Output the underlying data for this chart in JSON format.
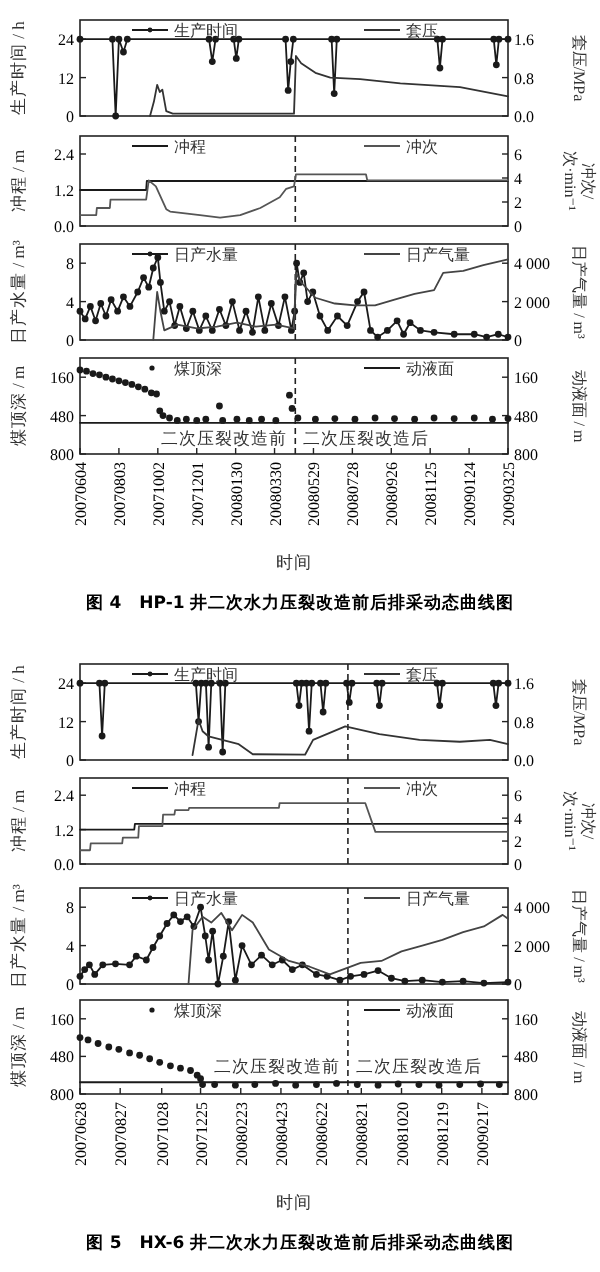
{
  "chart_data": [
    {
      "type": "line",
      "xlim": [
        "2007-06-04",
        "2009-03-25"
      ],
      "tick_labels": "y",
      "ylim": [
        0,
        30
      ],
      "yticks": [
        0,
        12,
        24
      ],
      "y2lim": [
        0,
        2
      ],
      "y2ticks": [
        {
          "value": 0,
          "label": "0.0"
        },
        0.8,
        1.6
      ],
      "ylabel": "生产时间 / h",
      "y2label": "套压/MPa",
      "legend": "top",
      "series": [
        {
          "name": "生产时间",
          "color": "#1a1a1a",
          "marker": "circle",
          "axis": "y",
          "x": [
            "2007-06-04",
            "2007-07-24",
            "2007-07-29",
            "2007-08-03",
            "2007-08-10",
            "2007-08-16",
            "2007-12-20",
            "2007-12-25",
            "2007-12-30",
            "2008-01-27",
            "2008-01-31",
            "2008-02-04",
            "2008-04-16",
            "2008-04-20",
            "2008-04-24",
            "2008-04-28",
            "2008-06-26",
            "2008-06-30",
            "2008-07-04",
            "2008-12-06",
            "2008-12-10",
            "2008-12-14",
            "2009-03-03",
            "2009-03-07",
            "2009-03-11",
            "2009-03-25"
          ],
          "values": [
            24,
            24,
            0,
            24,
            20,
            24,
            24,
            17,
            24,
            24,
            18,
            24,
            24,
            8,
            17,
            24,
            24,
            7,
            24,
            24,
            15,
            24,
            24,
            16,
            24,
            24
          ]
        },
        {
          "name": "套压",
          "color": "#333333",
          "marker": "none",
          "axis": "y2",
          "x": [
            "2007-09-20",
            "2007-09-26",
            "2007-10-01",
            "2007-10-05",
            "2007-10-09",
            "2007-10-15",
            "2007-10-25",
            "2008-04-29",
            "2008-05-02",
            "2008-05-10",
            "2008-06-01",
            "2008-06-24",
            "2008-08-09",
            "2008-10-10",
            "2009-01-10",
            "2009-03-25"
          ],
          "values": [
            0,
            0.3,
            0.65,
            0.5,
            0.55,
            0.1,
            0.05,
            0.05,
            1.25,
            1.1,
            0.9,
            0.8,
            0.77,
            0.68,
            0.6,
            0.41
          ]
        }
      ]
    },
    {
      "type": "line",
      "xlim": [
        "2007-06-04",
        "2009-03-25"
      ],
      "tick_labels": "y",
      "ylim": [
        0,
        3
      ],
      "yticks": [
        {
          "value": 0,
          "label": "0.0"
        },
        1.2,
        2.4
      ],
      "y2lim": [
        0,
        7.5
      ],
      "y2ticks": [
        0,
        2,
        4,
        6
      ],
      "ylabel": "冲程 / m",
      "y2label": "冲次/\n次·min⁻¹",
      "legend": "top",
      "ref_lines": [
        {
          "axis": "x",
          "value": "2008-05-01",
          "line_style": "dashed"
        }
      ],
      "series": [
        {
          "name": "冲程",
          "color": "#1a1a1a",
          "marker": "none",
          "axis": "y",
          "x": [
            "2007-06-04",
            "2007-09-14",
            "2007-09-15",
            "2009-03-25"
          ],
          "values": [
            1.2,
            1.2,
            1.5,
            1.5
          ]
        },
        {
          "name": "冲次",
          "color": "#555555",
          "marker": "none",
          "axis": "y2",
          "x": [
            "2007-06-04",
            "2007-06-29",
            "2007-06-30",
            "2007-07-20",
            "2007-07-21",
            "2007-09-14",
            "2007-09-18",
            "2007-09-29",
            "2007-10-15",
            "2007-10-21",
            "2007-12-06",
            "2008-01-06",
            "2008-02-06",
            "2008-03-08",
            "2008-04-07",
            "2008-04-17",
            "2008-04-29",
            "2008-05-02",
            "2008-08-18",
            "2008-08-20",
            "2009-03-25"
          ],
          "values": [
            0.9,
            0.9,
            1.5,
            1.5,
            2.2,
            2.2,
            3.8,
            3.3,
            1.4,
            1.2,
            0.9,
            0.7,
            0.9,
            1.5,
            2.4,
            3.1,
            3.3,
            4.3,
            4.3,
            3.8,
            3.8
          ]
        }
      ]
    },
    {
      "type": "line",
      "xlim": [
        "2007-06-04",
        "2009-03-25"
      ],
      "tick_labels": "y",
      "ylim": [
        0,
        10
      ],
      "yticks": [
        0,
        4,
        8
      ],
      "y2lim": [
        0,
        5000
      ],
      "y2ticks": [
        0,
        {
          "value": 2000,
          "label": "2 000"
        },
        {
          "value": 4000,
          "label": "4 000"
        }
      ],
      "ylabel": "日产水量 / m³",
      "y2label": "日产气量 / m³",
      "legend": "top",
      "ref_lines": [
        {
          "axis": "x",
          "value": "2008-05-01",
          "line_style": "dashed"
        }
      ],
      "series": [
        {
          "name": "日产水量",
          "color": "#1a1a1a",
          "marker": "circle",
          "axis": "y",
          "x": [
            "2007-06-04",
            "2007-06-12",
            "2007-06-20",
            "2007-06-28",
            "2007-07-06",
            "2007-07-14",
            "2007-07-22",
            "2007-08-01",
            "2007-08-10",
            "2007-08-20",
            "2007-09-01",
            "2007-09-10",
            "2007-09-18",
            "2007-09-25",
            "2007-10-02",
            "2007-10-06",
            "2007-10-12",
            "2007-10-20",
            "2007-10-28",
            "2007-11-05",
            "2007-11-15",
            "2007-11-25",
            "2007-12-05",
            "2007-12-15",
            "2007-12-25",
            "2008-01-05",
            "2008-01-15",
            "2008-01-25",
            "2008-02-05",
            "2008-02-15",
            "2008-02-25",
            "2008-03-05",
            "2008-03-15",
            "2008-03-25",
            "2008-04-05",
            "2008-04-15",
            "2008-04-25",
            "2008-04-30",
            "2008-05-03",
            "2008-05-08",
            "2008-05-14",
            "2008-05-20",
            "2008-05-28",
            "2008-06-08",
            "2008-06-20",
            "2008-07-05",
            "2008-07-20",
            "2008-08-05",
            "2008-08-15",
            "2008-08-25",
            "2008-09-05",
            "2008-09-20",
            "2008-10-05",
            "2008-10-15",
            "2008-10-25",
            "2008-11-10",
            "2008-12-01",
            "2009-01-01",
            "2009-02-01",
            "2009-02-20",
            "2009-03-10",
            "2009-03-25"
          ],
          "values": [
            3.0,
            2.2,
            3.5,
            2.0,
            3.8,
            2.5,
            4.2,
            3.0,
            4.5,
            3.5,
            5.0,
            6.5,
            5.5,
            7.5,
            8.6,
            6.0,
            3.0,
            4.0,
            1.5,
            3.5,
            1.2,
            3.0,
            1.0,
            2.5,
            1.0,
            3.2,
            1.5,
            4.0,
            1.0,
            3.0,
            0.8,
            4.5,
            1.0,
            3.8,
            1.5,
            4.5,
            1.0,
            3.0,
            8.0,
            6.0,
            7.0,
            4.0,
            5.0,
            2.5,
            1.0,
            2.5,
            1.5,
            4.0,
            5.0,
            1.0,
            0.3,
            1.0,
            2.0,
            0.6,
            1.8,
            1.0,
            0.8,
            0.6,
            0.6,
            0.3,
            0.6,
            0.3
          ]
        },
        {
          "name": "日产气量",
          "color": "#444444",
          "marker": "none",
          "axis": "y2",
          "x": [
            "2007-09-25",
            "2007-10-01",
            "2007-10-06",
            "2007-10-12",
            "2007-11-01",
            "2007-12-01",
            "2008-01-01",
            "2008-02-01",
            "2008-03-01",
            "2008-04-01",
            "2008-04-29",
            "2008-05-02",
            "2008-05-10",
            "2008-06-01",
            "2008-07-01",
            "2008-08-01",
            "2008-09-01",
            "2008-10-01",
            "2008-11-01",
            "2008-12-01",
            "2008-12-15",
            "2009-01-15",
            "2009-02-15",
            "2009-03-25"
          ],
          "values": [
            0,
            2500,
            1500,
            500,
            800,
            600,
            700,
            900,
            700,
            800,
            600,
            3500,
            3000,
            2200,
            1900,
            1800,
            1800,
            2100,
            2400,
            2600,
            3500,
            3600,
            3900,
            4200
          ]
        }
      ]
    },
    {
      "type": "line",
      "xlim": [
        "2007-06-04",
        "2009-03-25"
      ],
      "xticks": [
        {
          "value": "2007-06-04",
          "label": "20070604"
        },
        {
          "value": "2007-08-03",
          "label": "20070803"
        },
        {
          "value": "2007-10-02",
          "label": "20071002"
        },
        {
          "value": "2007-12-01",
          "label": "20071201"
        },
        {
          "value": "2008-01-30",
          "label": "20080130"
        },
        {
          "value": "2008-03-30",
          "label": "20080330"
        },
        {
          "value": "2008-05-29",
          "label": "20080529"
        },
        {
          "value": "2008-07-28",
          "label": "20080728"
        },
        {
          "value": "2008-09-26",
          "label": "20080926"
        },
        {
          "value": "2008-11-25",
          "label": "20081125"
        },
        {
          "value": "2009-01-24",
          "label": "20090124"
        },
        {
          "value": "2009-03-25",
          "label": "20090325"
        }
      ],
      "ylim": [
        800,
        0
      ],
      "yticks": [
        160,
        480,
        800
      ],
      "y2lim": [
        800,
        0
      ],
      "y2ticks": [
        160,
        480,
        800
      ],
      "ylabel": "煤顶深 / m",
      "y2label": "动液面 / m",
      "xlabel": "时间",
      "legend": "top",
      "ref_lines": [
        {
          "axis": "x",
          "value": "2008-05-01",
          "line_style": "dashed"
        }
      ],
      "annotations": [
        "二次压裂改造前",
        "二次压裂改造后",
        "图 4　HP-1 井二次水力压裂改造前后排采动态曲线图"
      ],
      "series": [
        {
          "name": "煤顶深",
          "color": "#1a1a1a",
          "type": "scatter",
          "marker": "circle",
          "axis": "y",
          "x": [
            "2007-06-04",
            "2007-06-14",
            "2007-06-24",
            "2007-07-04",
            "2007-07-14",
            "2007-07-24",
            "2007-08-03",
            "2007-08-13",
            "2007-08-23",
            "2007-09-02",
            "2007-09-12",
            "2007-09-22",
            "2007-09-30",
            "2007-10-05",
            "2007-10-10",
            "2007-10-20",
            "2007-11-01",
            "2007-11-15",
            "2007-12-01",
            "2007-12-15",
            "2008-01-05",
            "2008-01-10",
            "2008-02-01",
            "2008-02-20",
            "2008-03-10",
            "2008-04-01",
            "2008-04-22",
            "2008-04-26",
            "2008-05-05",
            "2008-06-01",
            "2008-07-01",
            "2008-08-01",
            "2008-09-01",
            "2008-10-01",
            "2008-11-01",
            "2008-12-01",
            "2009-01-01",
            "2009-02-01",
            "2009-03-01",
            "2009-03-25"
          ],
          "values": [
            100,
            110,
            130,
            140,
            160,
            175,
            190,
            205,
            220,
            240,
            260,
            290,
            300,
            440,
            480,
            500,
            520,
            510,
            520,
            510,
            400,
            520,
            510,
            520,
            510,
            520,
            310,
            420,
            500,
            510,
            505,
            510,
            500,
            505,
            510,
            500,
            505,
            500,
            510,
            505
          ]
        },
        {
          "name": "动液面",
          "color": "#1a1a1a",
          "marker": "none",
          "axis": "y2",
          "x": [
            "2007-06-04",
            "2009-03-25"
          ],
          "values": [
            540,
            540
          ]
        }
      ]
    },
    {
      "type": "line",
      "xlim": [
        "2007-06-28",
        "2009-03-28"
      ],
      "tick_labels": "y",
      "ylim": [
        0,
        30
      ],
      "yticks": [
        0,
        12,
        24
      ],
      "y2lim": [
        0,
        2
      ],
      "y2ticks": [
        {
          "value": 0,
          "label": "0.0"
        },
        0.8,
        1.6
      ],
      "ylabel": "生产时间 / h",
      "y2label": "套压/MPa",
      "legend": "top",
      "ref_lines": [
        {
          "axis": "x",
          "value": "2008-08-01",
          "line_style": "dashed"
        }
      ],
      "series": [
        {
          "name": "生产时间",
          "color": "#1a1a1a",
          "marker": "circle",
          "axis": "y",
          "x": [
            "2007-06-28",
            "2007-07-27",
            "2007-07-31",
            "2007-08-04",
            "2007-12-18",
            "2007-12-22",
            "2007-12-26",
            "2008-01-02",
            "2008-01-06",
            "2008-01-10",
            "2008-01-23",
            "2008-01-27",
            "2008-01-31",
            "2008-05-16",
            "2008-05-20",
            "2008-05-24",
            "2008-05-31",
            "2008-06-04",
            "2008-06-08",
            "2008-06-21",
            "2008-06-25",
            "2008-06-29",
            "2008-07-30",
            "2008-08-03",
            "2008-08-07",
            "2008-09-13",
            "2008-09-17",
            "2008-09-21",
            "2008-12-12",
            "2008-12-16",
            "2008-12-20",
            "2009-03-06",
            "2009-03-10",
            "2009-03-14",
            "2009-03-28"
          ],
          "values": [
            24,
            24,
            7.5,
            24,
            24,
            12,
            24,
            24,
            4,
            24,
            24,
            2.5,
            24,
            24,
            17,
            24,
            24,
            9,
            24,
            24,
            15,
            24,
            24,
            18,
            24,
            24,
            17,
            24,
            24,
            17,
            24,
            24,
            17,
            24,
            24
          ]
        },
        {
          "name": "套压",
          "color": "#333333",
          "marker": "none",
          "axis": "y2",
          "x": [
            "2007-12-13",
            "2007-12-22",
            "2007-12-28",
            "2008-01-06",
            "2008-02-20",
            "2008-03-12",
            "2008-05-29",
            "2008-06-10",
            "2008-07-28",
            "2008-09-17",
            "2008-11-16",
            "2009-01-15",
            "2009-03-01",
            "2009-03-28"
          ],
          "values": [
            0.1,
            0.84,
            0.6,
            0.49,
            0.33,
            0.12,
            0.11,
            0.42,
            0.7,
            0.54,
            0.42,
            0.38,
            0.42,
            0.33
          ]
        }
      ]
    },
    {
      "type": "line",
      "xlim": [
        "2007-06-28",
        "2009-03-28"
      ],
      "tick_labels": "y",
      "ylim": [
        0,
        3
      ],
      "yticks": [
        {
          "value": 0,
          "label": "0.0"
        },
        1.2,
        2.4
      ],
      "y2lim": [
        0,
        7.5
      ],
      "y2ticks": [
        0,
        2,
        4,
        6
      ],
      "ylabel": "冲程 / m",
      "y2label": "冲次/\n次·min⁻¹",
      "legend": "top",
      "ref_lines": [
        {
          "axis": "x",
          "value": "2008-08-01",
          "line_style": "dashed"
        }
      ],
      "series": [
        {
          "name": "冲程",
          "color": "#1a1a1a",
          "marker": "none",
          "axis": "y",
          "x": [
            "2007-06-28",
            "2007-09-17",
            "2007-09-18",
            "2009-03-28"
          ],
          "values": [
            1.2,
            1.2,
            1.4,
            1.4
          ]
        },
        {
          "name": "冲次",
          "color": "#555555",
          "marker": "none",
          "axis": "y2",
          "x": [
            "2007-06-28",
            "2007-07-13",
            "2007-07-14",
            "2007-08-30",
            "2007-08-31",
            "2007-09-23",
            "2007-09-24",
            "2007-10-29",
            "2007-10-30",
            "2007-11-16",
            "2007-11-17",
            "2007-12-07",
            "2007-12-08",
            "2008-04-20",
            "2008-04-21",
            "2008-08-27",
            "2008-09-11",
            "2009-03-28"
          ],
          "values": [
            1.2,
            1.2,
            1.8,
            1.8,
            2.3,
            2.3,
            3.3,
            3.3,
            4.3,
            4.3,
            4.7,
            4.7,
            4.9,
            4.9,
            5.3,
            5.3,
            2.8,
            2.8
          ]
        }
      ]
    },
    {
      "type": "line",
      "xlim": [
        "2007-06-28",
        "2009-03-28"
      ],
      "tick_labels": "y",
      "ylim": [
        0,
        10
      ],
      "yticks": [
        0,
        4,
        8
      ],
      "y2lim": [
        0,
        5000
      ],
      "y2ticks": [
        0,
        {
          "value": 2000,
          "label": "2 000"
        },
        {
          "value": 4000,
          "label": "4 000"
        }
      ],
      "ylabel": "日产水量 / m³",
      "y2label": "日产气量 / m³",
      "legend": "top",
      "ref_lines": [
        {
          "axis": "x",
          "value": "2008-08-01",
          "line_style": "dashed"
        }
      ],
      "series": [
        {
          "name": "日产水量",
          "color": "#1a1a1a",
          "marker": "circle",
          "axis": "y",
          "x": [
            "2007-06-28",
            "2007-07-05",
            "2007-07-12",
            "2007-07-20",
            "2007-08-01",
            "2007-08-20",
            "2007-09-10",
            "2007-09-20",
            "2007-10-05",
            "2007-10-15",
            "2007-10-25",
            "2007-11-05",
            "2007-11-15",
            "2007-11-25",
            "2007-12-05",
            "2007-12-15",
            "2007-12-25",
            "2008-01-01",
            "2008-01-06",
            "2008-01-12",
            "2008-01-20",
            "2008-01-28",
            "2008-02-05",
            "2008-02-15",
            "2008-02-25",
            "2008-03-10",
            "2008-03-25",
            "2008-04-10",
            "2008-04-25",
            "2008-05-10",
            "2008-05-25",
            "2008-06-15",
            "2008-07-01",
            "2008-07-20",
            "2008-08-05",
            "2008-08-25",
            "2008-09-15",
            "2008-10-05",
            "2008-10-25",
            "2008-11-20",
            "2008-12-20",
            "2009-01-20",
            "2009-02-20",
            "2009-03-28"
          ],
          "values": [
            0.8,
            1.5,
            2.0,
            1.0,
            2.0,
            2.1,
            2.0,
            2.9,
            2.5,
            3.8,
            5.0,
            6.3,
            7.2,
            6.5,
            7.0,
            6.0,
            8.0,
            5.0,
            2.5,
            5.5,
            0,
            2.9,
            6.5,
            0.4,
            4.0,
            2.0,
            3.0,
            2.0,
            2.5,
            1.5,
            2.0,
            1.0,
            0.8,
            0.4,
            0.8,
            1.0,
            1.4,
            0.6,
            0.3,
            0.4,
            0.2,
            0.3,
            0.1,
            0.2
          ]
        },
        {
          "name": "日产气量",
          "color": "#444444",
          "marker": "none",
          "axis": "y2",
          "x": [
            "2007-12-07",
            "2007-12-13",
            "2007-12-28",
            "2008-01-10",
            "2008-01-25",
            "2008-02-10",
            "2008-02-25",
            "2008-03-12",
            "2008-04-05",
            "2008-05-05",
            "2008-06-05",
            "2008-07-05",
            "2008-07-20",
            "2008-08-20",
            "2008-09-20",
            "2008-10-20",
            "2008-11-20",
            "2008-12-20",
            "2009-01-20",
            "2009-02-20",
            "2009-03-20",
            "2009-03-28"
          ],
          "values": [
            0,
            2800,
            3500,
            3200,
            3700,
            2800,
            3600,
            3200,
            1800,
            1200,
            900,
            500,
            700,
            1100,
            1200,
            1700,
            2000,
            2300,
            2700,
            3000,
            3600,
            3400
          ]
        }
      ]
    },
    {
      "type": "line",
      "xlim": [
        "2007-06-28",
        "2009-03-28"
      ],
      "xticks": [
        {
          "value": "2007-06-28",
          "label": "20070628"
        },
        {
          "value": "2007-08-27",
          "label": "20070827"
        },
        {
          "value": "2007-10-28",
          "label": "20071028"
        },
        {
          "value": "2007-12-25",
          "label": "20071225"
        },
        {
          "value": "2008-02-23",
          "label": "20080223"
        },
        {
          "value": "2008-04-23",
          "label": "20080423"
        },
        {
          "value": "2008-06-22",
          "label": "20080622"
        },
        {
          "value": "2008-08-21",
          "label": "20080821"
        },
        {
          "value": "2008-10-20",
          "label": "20081020"
        },
        {
          "value": "2008-12-19",
          "label": "20081219"
        },
        {
          "value": "2009-02-17",
          "label": "20090217"
        }
      ],
      "ylim": [
        800,
        0
      ],
      "yticks": [
        160,
        480,
        800
      ],
      "y2lim": [
        800,
        0
      ],
      "y2ticks": [
        160,
        480,
        800
      ],
      "ylabel": "煤顶深 / m",
      "y2label": "动液面 / m",
      "xlabel": "时间",
      "legend": "top",
      "ref_lines": [
        {
          "axis": "x",
          "value": "2008-08-01",
          "line_style": "dashed"
        }
      ],
      "annotations": [
        "二次压裂改造前",
        "二次压裂改造后",
        "图 5　HX-6 井二次水力压裂改造前后排采动态曲线图"
      ],
      "series": [
        {
          "name": "煤顶深",
          "color": "#1a1a1a",
          "type": "scatter",
          "marker": "circle",
          "axis": "y",
          "x": [
            "2007-06-28",
            "2007-07-10",
            "2007-07-25",
            "2007-08-10",
            "2007-08-25",
            "2007-09-10",
            "2007-09-25",
            "2007-10-10",
            "2007-10-25",
            "2007-11-10",
            "2007-11-25",
            "2007-12-10",
            "2007-12-20",
            "2007-12-25",
            "2007-12-28",
            "2008-01-15",
            "2008-02-15",
            "2008-03-15",
            "2008-04-15",
            "2008-05-15",
            "2008-06-15",
            "2008-07-15",
            "2008-08-15",
            "2008-09-15",
            "2008-10-15",
            "2008-11-15",
            "2008-12-15",
            "2009-01-15",
            "2009-02-15",
            "2009-03-15"
          ],
          "values": [
            320,
            340,
            370,
            400,
            420,
            450,
            470,
            500,
            530,
            560,
            580,
            600,
            640,
            670,
            720,
            720,
            725,
            720,
            710,
            725,
            720,
            710,
            720,
            725,
            715,
            720,
            725,
            720,
            715,
            720
          ]
        },
        {
          "name": "动液面",
          "color": "#1a1a1a",
          "marker": "none",
          "axis": "y2",
          "x": [
            "2007-06-28",
            "2009-03-28"
          ],
          "values": [
            700,
            700
          ]
        }
      ]
    }
  ]
}
